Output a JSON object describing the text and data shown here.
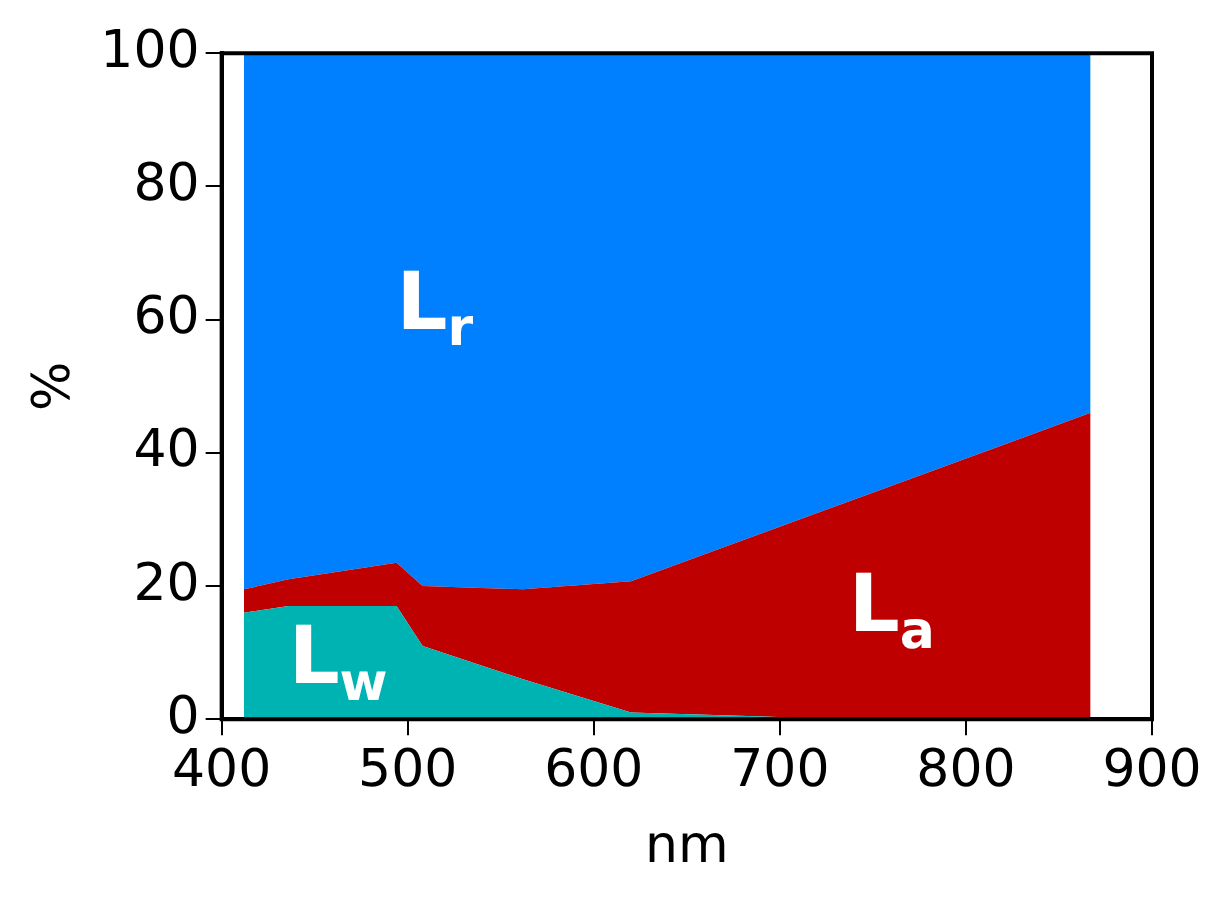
{
  "chart_data": {
    "type": "area",
    "stacked": true,
    "xlabel": "nm",
    "ylabel": "%",
    "x": [
      412,
      436,
      494,
      508,
      562,
      620,
      737,
      867
    ],
    "series": [
      {
        "name": "L$_{w}$",
        "color": "#00b3b3",
        "values": [
          16,
          17,
          17,
          11,
          6,
          1,
          0,
          0
        ]
      },
      {
        "name": "L$_{a}$",
        "color": "#be0000",
        "values": [
          3.5,
          4,
          6.5,
          9,
          13.5,
          19.7,
          32.7,
          46
        ]
      },
      {
        "name": "L$_{r}$",
        "color": "#0080ff",
        "values": [
          80.5,
          79,
          76.5,
          80,
          80.5,
          79.3,
          67.3,
          54
        ]
      }
    ],
    "xlim": [
      400,
      900
    ],
    "xticks": [
      400,
      500,
      600,
      700,
      800,
      900
    ],
    "ylim": [
      0,
      100
    ],
    "yticks": [
      0,
      20,
      40,
      60,
      80,
      100
    ],
    "grid": false,
    "legend": false
  }
}
